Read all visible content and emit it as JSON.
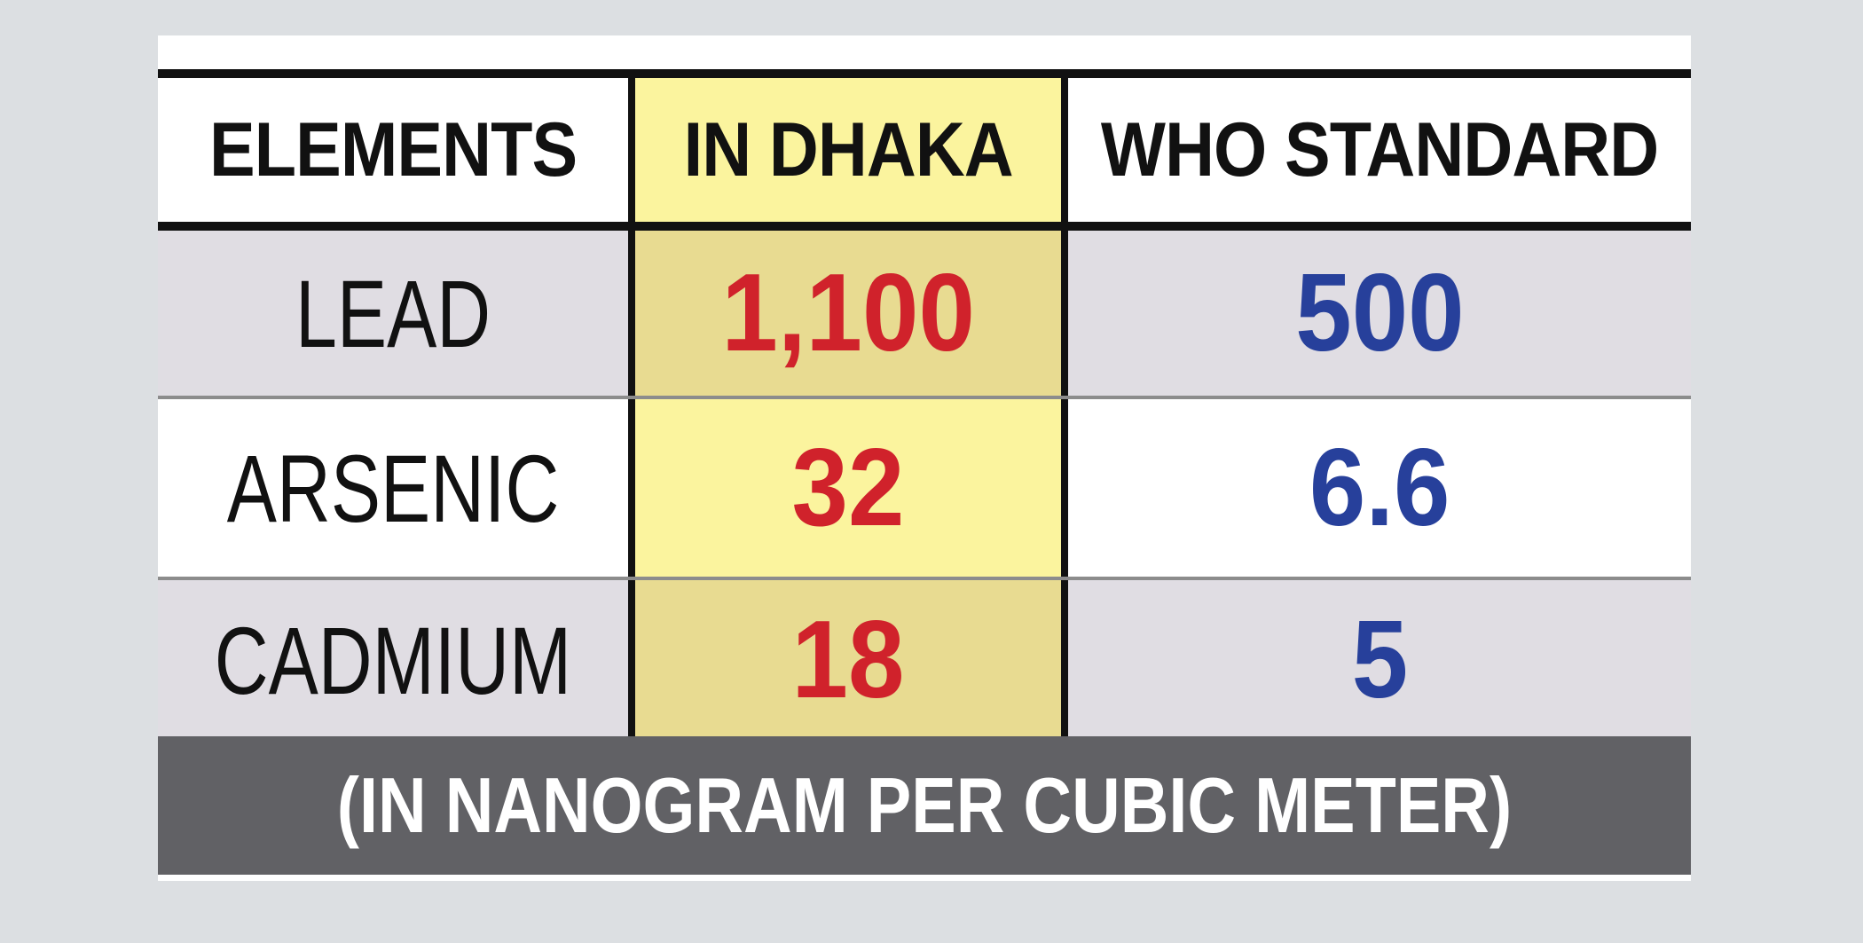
{
  "colors": {
    "page_background": "#dcdfe2",
    "header_text": "#111111",
    "dhaka_value": "#d0222b",
    "who_value": "#27409b",
    "highlight_column": "#fbf49e",
    "highlight_column_shaded": "#e8db91",
    "row_shaded": "#e0dde3",
    "footer_background": "#616165",
    "footer_text": "#ffffff"
  },
  "chart_data": {
    "type": "table",
    "columns": [
      "ELEMENTS",
      "IN DHAKA",
      "WHO STANDARD"
    ],
    "rows": [
      {
        "element": "LEAD",
        "in_dhaka": "1,100",
        "who_standard": "500"
      },
      {
        "element": "ARSENIC",
        "in_dhaka": "32",
        "who_standard": "6.6"
      },
      {
        "element": "CADMIUM",
        "in_dhaka": "18",
        "who_standard": "5"
      }
    ],
    "unit_note": "(IN NANOGRAM PER CUBIC METER)"
  }
}
